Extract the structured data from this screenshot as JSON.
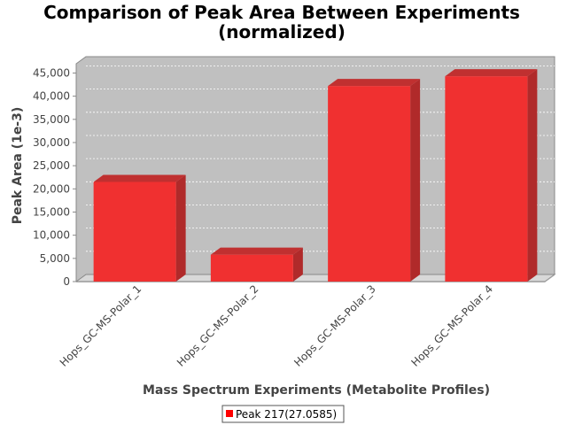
{
  "chart_data": {
    "type": "bar",
    "title_lines": [
      "Comparison of Peak Area Between Experiments",
      "(normalized)"
    ],
    "xlabel": "Mass Spectrum Experiments (Metabolite Profiles)",
    "ylabel": "Peak Area (1e-3)",
    "categories": [
      "Hops_GC-MS-Polar_1",
      "Hops_GC-MS-Polar_2",
      "Hops_GC-MS-Polar_3",
      "Hops_GC-MS-Polar_4"
    ],
    "series": [
      {
        "name": "Peak 217(27.0585)",
        "values": [
          21500,
          5800,
          42200,
          44300
        ],
        "color": "#f03030"
      }
    ],
    "ylim": [
      0,
      47000
    ],
    "yticks": [
      0,
      5000,
      10000,
      15000,
      20000,
      25000,
      30000,
      35000,
      40000,
      45000
    ],
    "ytick_labels": [
      "0",
      "5,000",
      "10,000",
      "15,000",
      "20,000",
      "25,000",
      "30,000",
      "35,000",
      "40,000",
      "45,000"
    ],
    "grid": true,
    "legend_position": "bottom",
    "plot_background": "#c0c0c0"
  }
}
